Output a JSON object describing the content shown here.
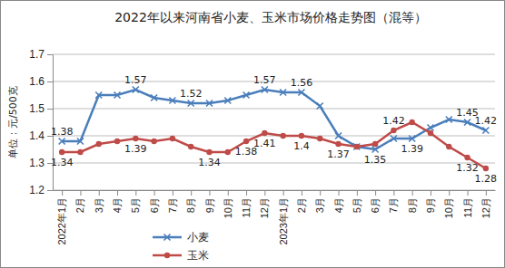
{
  "chart_data": {
    "type": "line",
    "title": "2022年以来河南省小麦、玉米市场价格走势图（混等）",
    "y_label": "单位：元/500克",
    "categories": [
      "2022年1月",
      "2月",
      "3月",
      "4月",
      "5月",
      "6月",
      "7月",
      "8月",
      "9月",
      "10月",
      "11月",
      "12月",
      "2023年1月",
      "2月",
      "3月",
      "4月",
      "5月",
      "6月",
      "7月",
      "8月",
      "9月",
      "10月",
      "11月",
      "12月"
    ],
    "series": [
      {
        "name": "小麦",
        "color": "#4a7ebb",
        "marker": "x",
        "values": [
          1.38,
          1.38,
          1.55,
          1.55,
          1.57,
          1.54,
          1.53,
          1.52,
          1.52,
          1.53,
          1.55,
          1.57,
          1.56,
          1.56,
          1.51,
          1.4,
          1.36,
          1.35,
          1.39,
          1.39,
          1.43,
          1.46,
          1.45,
          1.42
        ],
        "value_labels": [
          "1.38",
          null,
          null,
          null,
          "1.57",
          null,
          null,
          "1.52",
          null,
          null,
          null,
          "1.57",
          null,
          "1.56",
          null,
          null,
          null,
          "1.35",
          null,
          "1.39",
          null,
          null,
          "1.45",
          "1.42"
        ]
      },
      {
        "name": "玉米",
        "color": "#be4b48",
        "marker": "circle",
        "values": [
          1.34,
          1.34,
          1.37,
          1.38,
          1.39,
          1.38,
          1.39,
          1.36,
          1.34,
          1.34,
          1.38,
          1.41,
          1.4,
          1.4,
          1.39,
          1.37,
          1.36,
          1.37,
          1.42,
          1.45,
          1.41,
          1.36,
          1.32,
          1.28
        ],
        "value_labels": [
          "1.34",
          null,
          null,
          null,
          "1.39",
          null,
          null,
          null,
          "1.34",
          null,
          "1.38",
          "1.41",
          null,
          "1.4",
          null,
          "1.37",
          null,
          null,
          "1.42",
          null,
          null,
          null,
          "1.32",
          "1.28"
        ]
      }
    ],
    "ylim": [
      1.2,
      1.7
    ],
    "yticks": [
      1.2,
      1.3,
      1.4,
      1.5,
      1.6,
      1.7
    ],
    "grid": true,
    "legend": "bottom"
  }
}
